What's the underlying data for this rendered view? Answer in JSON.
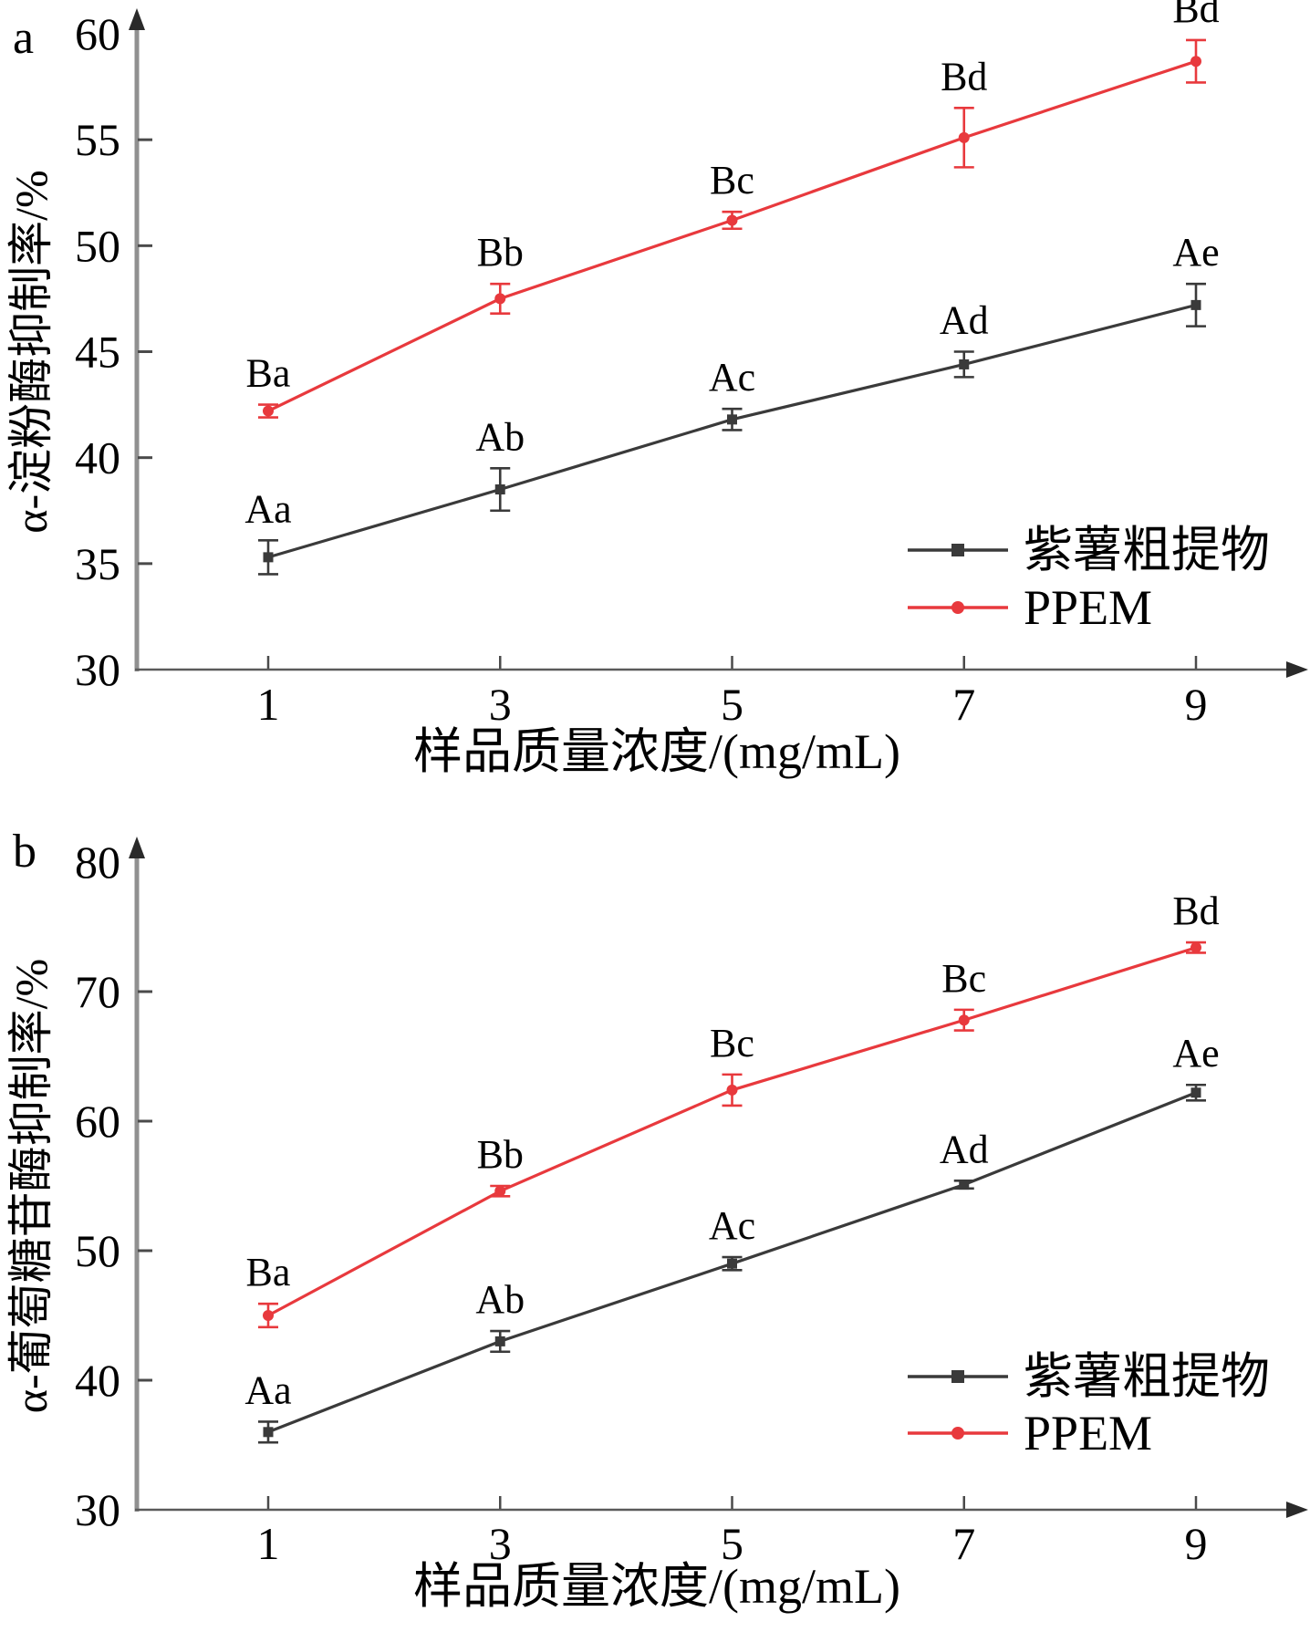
{
  "chart_data": [
    {
      "type": "line",
      "panel_label": "a",
      "xlabel": "样品质量浓度/(mg/mL)",
      "ylabel": "α-淀粉酶抑制率/%",
      "x": [
        1,
        3,
        5,
        7,
        9
      ],
      "ylim": [
        30,
        60
      ],
      "yticks": [
        30,
        35,
        40,
        45,
        50,
        55,
        60
      ],
      "grid": false,
      "legend_position": "lower right",
      "series": [
        {
          "name": "紫薯粗提物",
          "color": "#3a3a3a",
          "marker": "square",
          "values": [
            35.3,
            38.5,
            41.8,
            44.4,
            47.2
          ],
          "errors": [
            0.8,
            1.0,
            0.5,
            0.6,
            1.0
          ],
          "point_labels": [
            "Aa",
            "Ab",
            "Ac",
            "Ad",
            "Ae"
          ]
        },
        {
          "name": "PPEM",
          "color": "#e8393d",
          "marker": "circle",
          "values": [
            42.2,
            47.5,
            51.2,
            55.1,
            58.7
          ],
          "errors": [
            0.3,
            0.7,
            0.4,
            1.4,
            1.0
          ],
          "point_labels": [
            "Ba",
            "Bb",
            "Bc",
            "Bd",
            "Bd"
          ]
        }
      ]
    },
    {
      "type": "line",
      "panel_label": "b",
      "xlabel": "样品质量浓度/(mg/mL)",
      "ylabel": "α-葡萄糖苷酶抑制率/%",
      "x": [
        1,
        3,
        5,
        7,
        9
      ],
      "ylim": [
        30,
        80
      ],
      "yticks": [
        30,
        40,
        50,
        60,
        70,
        80
      ],
      "grid": false,
      "legend_position": "lower right",
      "series": [
        {
          "name": "紫薯粗提物",
          "color": "#3a3a3a",
          "marker": "square",
          "values": [
            36.0,
            43.0,
            49.0,
            55.1,
            62.2
          ],
          "errors": [
            0.8,
            0.8,
            0.5,
            0.3,
            0.6
          ],
          "point_labels": [
            "Aa",
            "Ab",
            "Ac",
            "Ad",
            "Ae"
          ]
        },
        {
          "name": "PPEM",
          "color": "#e8393d",
          "marker": "circle",
          "values": [
            45.0,
            54.6,
            62.4,
            67.8,
            73.4
          ],
          "errors": [
            0.9,
            0.4,
            1.2,
            0.8,
            0.4
          ],
          "point_labels": [
            "Ba",
            "Bb",
            "Bc",
            "Bc",
            "Bd"
          ]
        }
      ]
    }
  ],
  "colors": {
    "series_black": "#3a3a3a",
    "series_red": "#e8393d",
    "y_axis": "#909090",
    "x_axis": "#5a5a5a",
    "tick": "#4a4a4a",
    "text": "#000000",
    "background": "#ffffff"
  }
}
